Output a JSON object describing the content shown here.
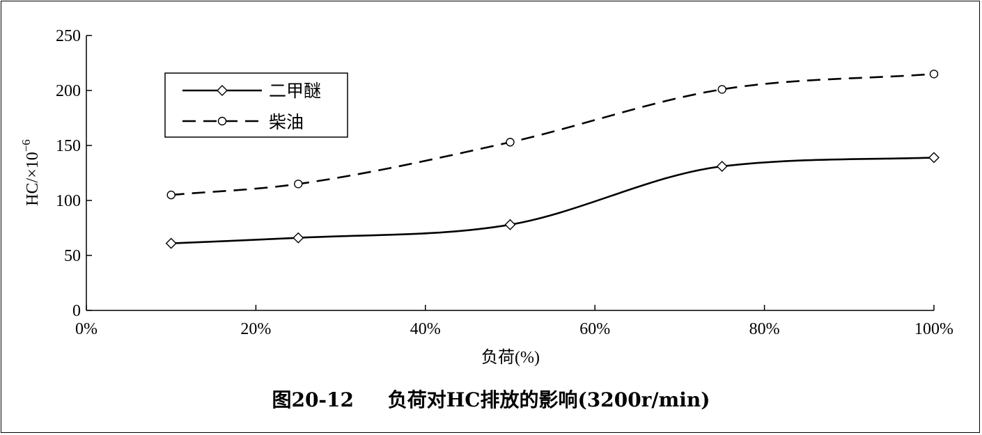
{
  "chart_data": {
    "type": "line",
    "title": "",
    "xlabel": "负荷(%)",
    "ylabel_base": "HC/×10",
    "ylabel_exp": "−6",
    "xlim": [
      0,
      100
    ],
    "ylim": [
      0,
      250
    ],
    "xticks": [
      0,
      20,
      40,
      60,
      80,
      100
    ],
    "xtick_labels": [
      "0%",
      "20%",
      "40%",
      "60%",
      "80%",
      "100%"
    ],
    "yticks": [
      0,
      50,
      100,
      150,
      200,
      250
    ],
    "ytick_labels": [
      "0",
      "50",
      "100",
      "150",
      "200",
      "250"
    ],
    "grid": false,
    "legend_position": "top-left",
    "series": [
      {
        "name": "二甲醚",
        "style": "solid",
        "marker": "diamond",
        "x": [
          10,
          25,
          50,
          75,
          100
        ],
        "values": [
          61,
          66,
          78,
          131,
          139
        ]
      },
      {
        "name": "柴油",
        "style": "dashed",
        "marker": "circle",
        "x": [
          10,
          25,
          50,
          75,
          100
        ],
        "values": [
          105,
          115,
          153,
          201,
          215
        ]
      }
    ]
  },
  "caption": {
    "text": "图20-12     负荷对HC排放的影响(3200r/min)"
  },
  "colors": {
    "line": "#000000",
    "background": "#ffffff"
  }
}
